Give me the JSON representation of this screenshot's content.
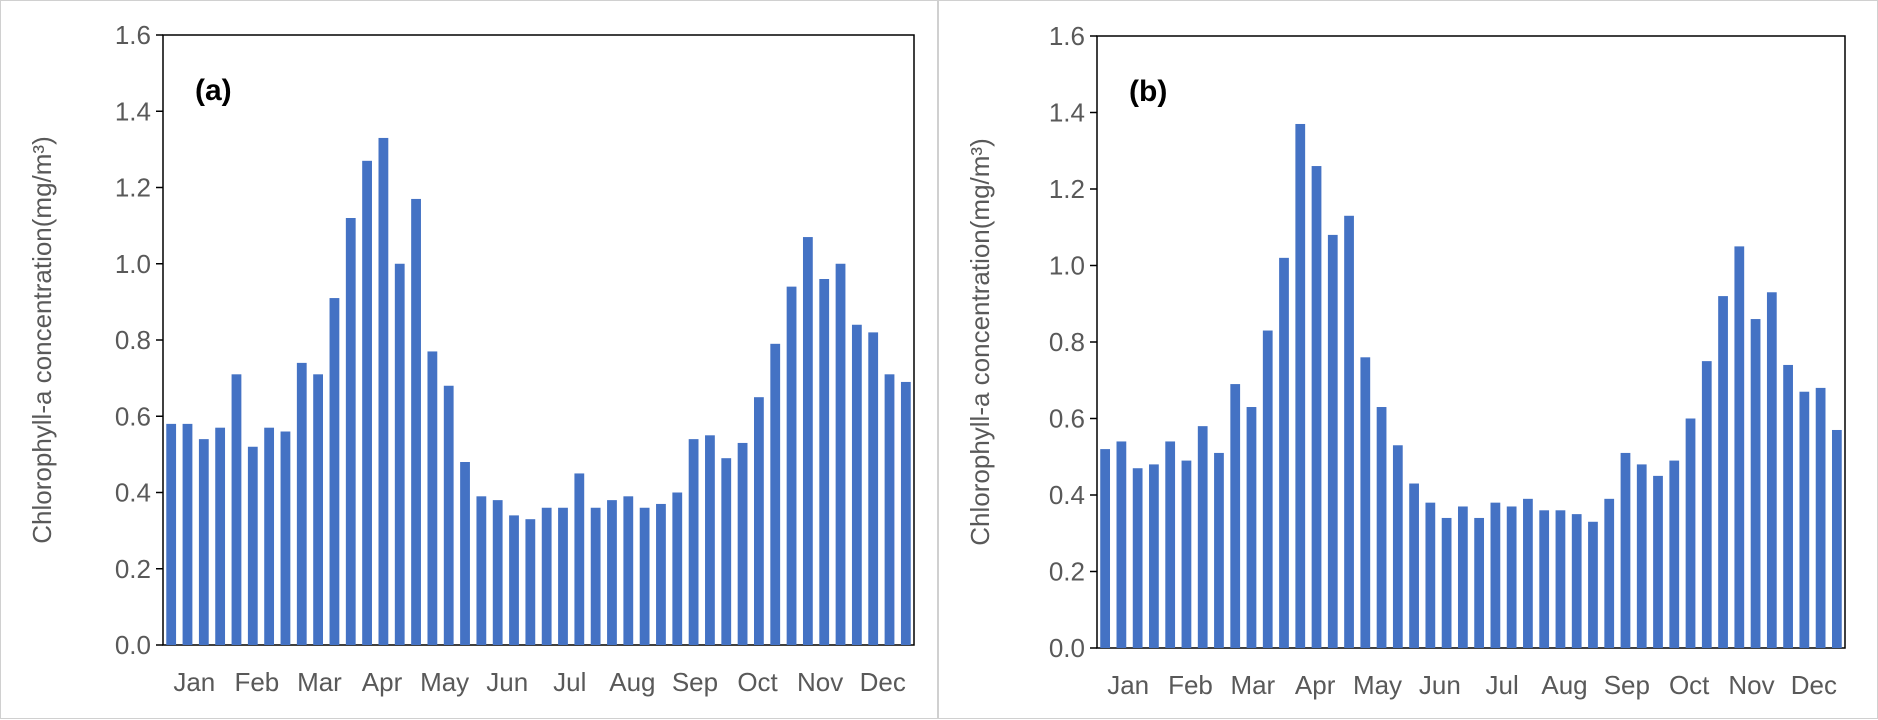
{
  "colors": {
    "bar": "#4472c4",
    "axis": "#000000",
    "text": "#595959"
  },
  "chart_data": [
    {
      "type": "bar",
      "panel_label": "(a)",
      "ylabel": "Chlorophyll-a concentration(mg/m³)",
      "ylim": [
        0,
        1.6
      ],
      "yticks": [
        "0.0",
        "0.2",
        "0.4",
        "0.6",
        "0.8",
        "1.0",
        "1.2",
        "1.4",
        "1.6"
      ],
      "month_labels": [
        "Jan",
        "Feb",
        "Mar",
        "Apr",
        "May",
        "Jun",
        "Jul",
        "Aug",
        "Sep",
        "Oct",
        "Nov",
        "Dec"
      ],
      "values": [
        0.58,
        0.58,
        0.54,
        0.57,
        0.71,
        0.52,
        0.57,
        0.56,
        0.74,
        0.71,
        0.91,
        1.12,
        1.27,
        1.33,
        1.0,
        1.17,
        0.77,
        0.68,
        0.48,
        0.39,
        0.38,
        0.34,
        0.33,
        0.36,
        0.36,
        0.45,
        0.36,
        0.38,
        0.39,
        0.36,
        0.37,
        0.4,
        0.54,
        0.55,
        0.49,
        0.53,
        0.65,
        0.79,
        0.94,
        1.07,
        0.96,
        1.0,
        0.84,
        0.82,
        0.71,
        0.69
      ]
    },
    {
      "type": "bar",
      "panel_label": "(b)",
      "ylabel": "Chlorophyll-a concentration(mg/m³)",
      "ylim": [
        0,
        1.6
      ],
      "yticks": [
        "0.0",
        "0.2",
        "0.4",
        "0.6",
        "0.8",
        "1.0",
        "1.2",
        "1.4",
        "1.6"
      ],
      "month_labels": [
        "Jan",
        "Feb",
        "Mar",
        "Apr",
        "May",
        "Jun",
        "Jul",
        "Aug",
        "Sep",
        "Oct",
        "Nov",
        "Dec"
      ],
      "values": [
        0.52,
        0.54,
        0.47,
        0.48,
        0.54,
        0.49,
        0.58,
        0.51,
        0.69,
        0.63,
        0.83,
        1.02,
        1.37,
        1.26,
        1.08,
        1.13,
        0.76,
        0.63,
        0.53,
        0.43,
        0.38,
        0.34,
        0.37,
        0.34,
        0.38,
        0.37,
        0.39,
        0.36,
        0.36,
        0.35,
        0.33,
        0.39,
        0.51,
        0.48,
        0.45,
        0.49,
        0.6,
        0.75,
        0.92,
        1.05,
        0.86,
        0.93,
        0.74,
        0.67,
        0.68,
        0.57
      ]
    }
  ]
}
